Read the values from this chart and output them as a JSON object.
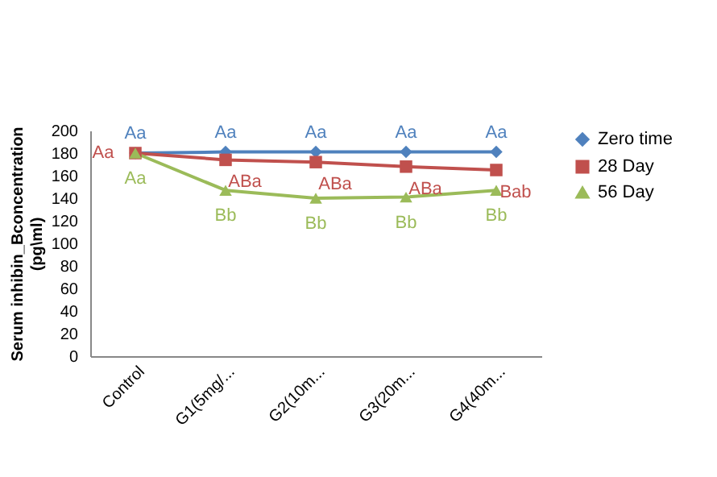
{
  "chart_data": {
    "type": "line",
    "ylabel": "Serum inhibin_Bconcentration\n(pg\\ml)",
    "categories": [
      "Control",
      "G1(5mg/...",
      "G2(10m...",
      "G3(20m...",
      "G4(40m..."
    ],
    "series": [
      {
        "name": "Zero time",
        "color": "#4f81bd",
        "marker": "diamond",
        "values": [
          180,
          181,
          181,
          181,
          181
        ],
        "value_labels": [
          "Aa",
          "Aa",
          "Aa",
          "Aa",
          "Aa"
        ]
      },
      {
        "name": "28 Day",
        "color": "#c0504d",
        "marker": "square",
        "values": [
          180,
          174,
          172,
          168,
          165
        ],
        "value_labels": [
          "Aa",
          "ABa",
          "ABa",
          "ABa",
          "Bab"
        ]
      },
      {
        "name": "56 Day",
        "color": "#9bbb59",
        "marker": "triangle",
        "values": [
          180,
          147,
          140,
          141,
          147
        ],
        "value_labels": [
          "Aa",
          "Bb",
          "Bb",
          "Bb",
          "Bb"
        ]
      }
    ],
    "ylim": [
      0,
      200
    ],
    "yticks": [
      0,
      20,
      40,
      60,
      80,
      100,
      120,
      140,
      160,
      180,
      200
    ],
    "grid": false,
    "legend": "right"
  }
}
